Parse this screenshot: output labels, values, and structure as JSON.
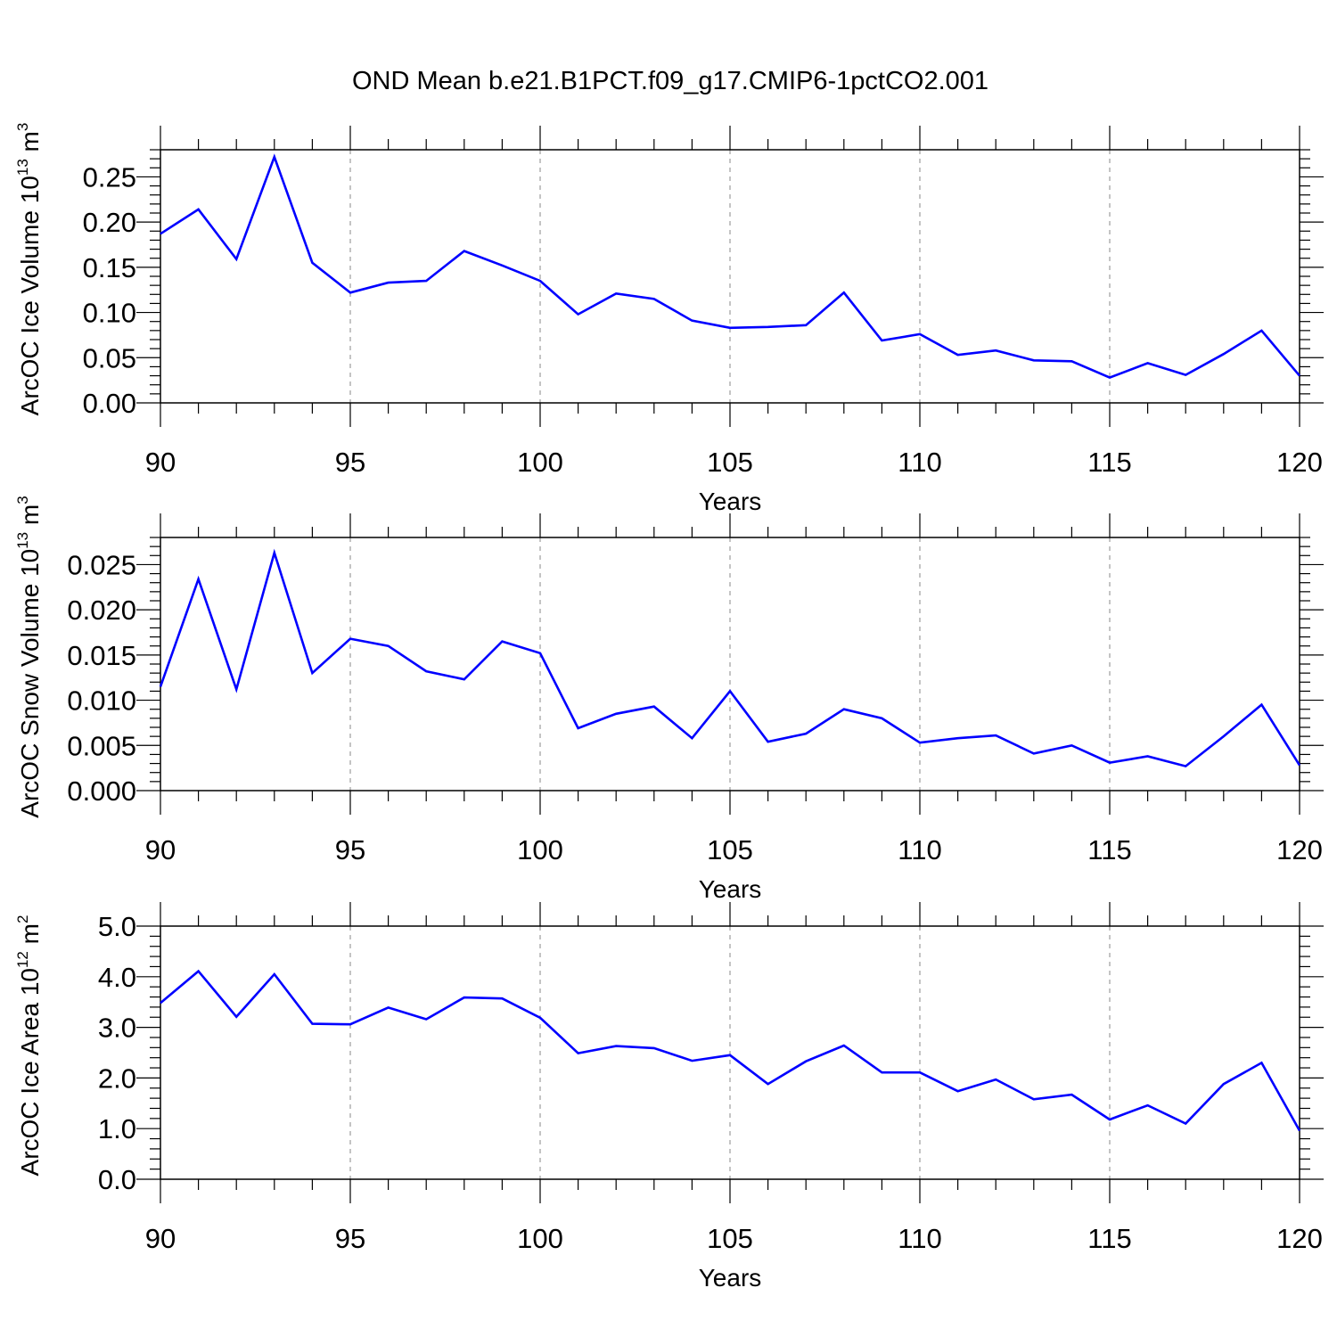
{
  "title": "OND Mean b.e21.B1PCT.f09_g17.CMIP6-1pctCO2.001",
  "colors": {
    "line": "#0000ff",
    "axis": "#000000",
    "grid": "#888888"
  },
  "chart_data": [
    {
      "type": "line",
      "xlabel": "Years",
      "ylabel": {
        "main": "ArcOC Ice Volume 10",
        "exp": "13",
        "unit": " m",
        "unit_exp": "3"
      },
      "xlim": [
        90,
        120
      ],
      "ylim": [
        0,
        0.28
      ],
      "xticks": [
        "90",
        "95",
        "100",
        "105",
        "110",
        "115",
        "120"
      ],
      "yticks": [
        "0.00",
        "0.05",
        "0.10",
        "0.15",
        "0.20",
        "0.25"
      ],
      "grid": "vertical dashed at major x ticks",
      "x": [
        90,
        91,
        92,
        93,
        94,
        95,
        96,
        97,
        98,
        99,
        100,
        101,
        102,
        103,
        104,
        105,
        106,
        107,
        108,
        109,
        110,
        111,
        112,
        113,
        114,
        115,
        116,
        117,
        118,
        119,
        120
      ],
      "series": [
        {
          "values": [
            0.187,
            0.214,
            0.159,
            0.272,
            0.155,
            0.122,
            0.133,
            0.135,
            0.168,
            0.152,
            0.135,
            0.098,
            0.121,
            0.115,
            0.091,
            0.083,
            0.084,
            0.086,
            0.122,
            0.069,
            0.076,
            0.053,
            0.058,
            0.047,
            0.046,
            0.028,
            0.044,
            0.031,
            0.054,
            0.08,
            0.03
          ]
        }
      ]
    },
    {
      "type": "line",
      "xlabel": "Years",
      "ylabel": {
        "main": "ArcOC Snow Volume 10",
        "exp": "13",
        "unit": " m",
        "unit_exp": "3"
      },
      "xlim": [
        90,
        120
      ],
      "ylim": [
        0,
        0.028
      ],
      "xticks": [
        "90",
        "95",
        "100",
        "105",
        "110",
        "115",
        "120"
      ],
      "yticks": [
        "0.000",
        "0.005",
        "0.010",
        "0.015",
        "0.020",
        "0.025"
      ],
      "grid": "vertical dashed at major x ticks",
      "x": [
        90,
        91,
        92,
        93,
        94,
        95,
        96,
        97,
        98,
        99,
        100,
        101,
        102,
        103,
        104,
        105,
        106,
        107,
        108,
        109,
        110,
        111,
        112,
        113,
        114,
        115,
        116,
        117,
        118,
        119,
        120
      ],
      "series": [
        {
          "values": [
            0.0115,
            0.0234,
            0.0112,
            0.0263,
            0.013,
            0.0168,
            0.016,
            0.0132,
            0.0123,
            0.0165,
            0.0152,
            0.0069,
            0.0085,
            0.0093,
            0.0058,
            0.011,
            0.0054,
            0.0063,
            0.009,
            0.008,
            0.0053,
            0.0058,
            0.0061,
            0.0041,
            0.005,
            0.0031,
            0.0038,
            0.0027,
            0.006,
            0.0095,
            0.0028
          ]
        }
      ]
    },
    {
      "type": "line",
      "xlabel": "Years",
      "ylabel": {
        "main": "ArcOC Ice Area 10",
        "exp": "12",
        "unit": " m",
        "unit_exp": "2"
      },
      "xlim": [
        90,
        120
      ],
      "ylim": [
        0,
        5.0
      ],
      "xticks": [
        "90",
        "95",
        "100",
        "105",
        "110",
        "115",
        "120"
      ],
      "yticks": [
        "0.0",
        "1.0",
        "2.0",
        "3.0",
        "4.0",
        "5.0"
      ],
      "grid": "vertical dashed at major x ticks",
      "x": [
        90,
        91,
        92,
        93,
        94,
        95,
        96,
        97,
        98,
        99,
        100,
        101,
        102,
        103,
        104,
        105,
        106,
        107,
        108,
        109,
        110,
        111,
        112,
        113,
        114,
        115,
        116,
        117,
        118,
        119,
        120
      ],
      "series": [
        {
          "values": [
            3.48,
            4.11,
            3.21,
            4.05,
            3.07,
            3.06,
            3.39,
            3.16,
            3.59,
            3.57,
            3.19,
            2.49,
            2.63,
            2.59,
            2.34,
            2.45,
            1.88,
            2.33,
            2.64,
            2.11,
            2.11,
            1.74,
            1.97,
            1.58,
            1.67,
            1.18,
            1.46,
            1.1,
            1.88,
            2.3,
            0.96
          ]
        }
      ]
    }
  ]
}
